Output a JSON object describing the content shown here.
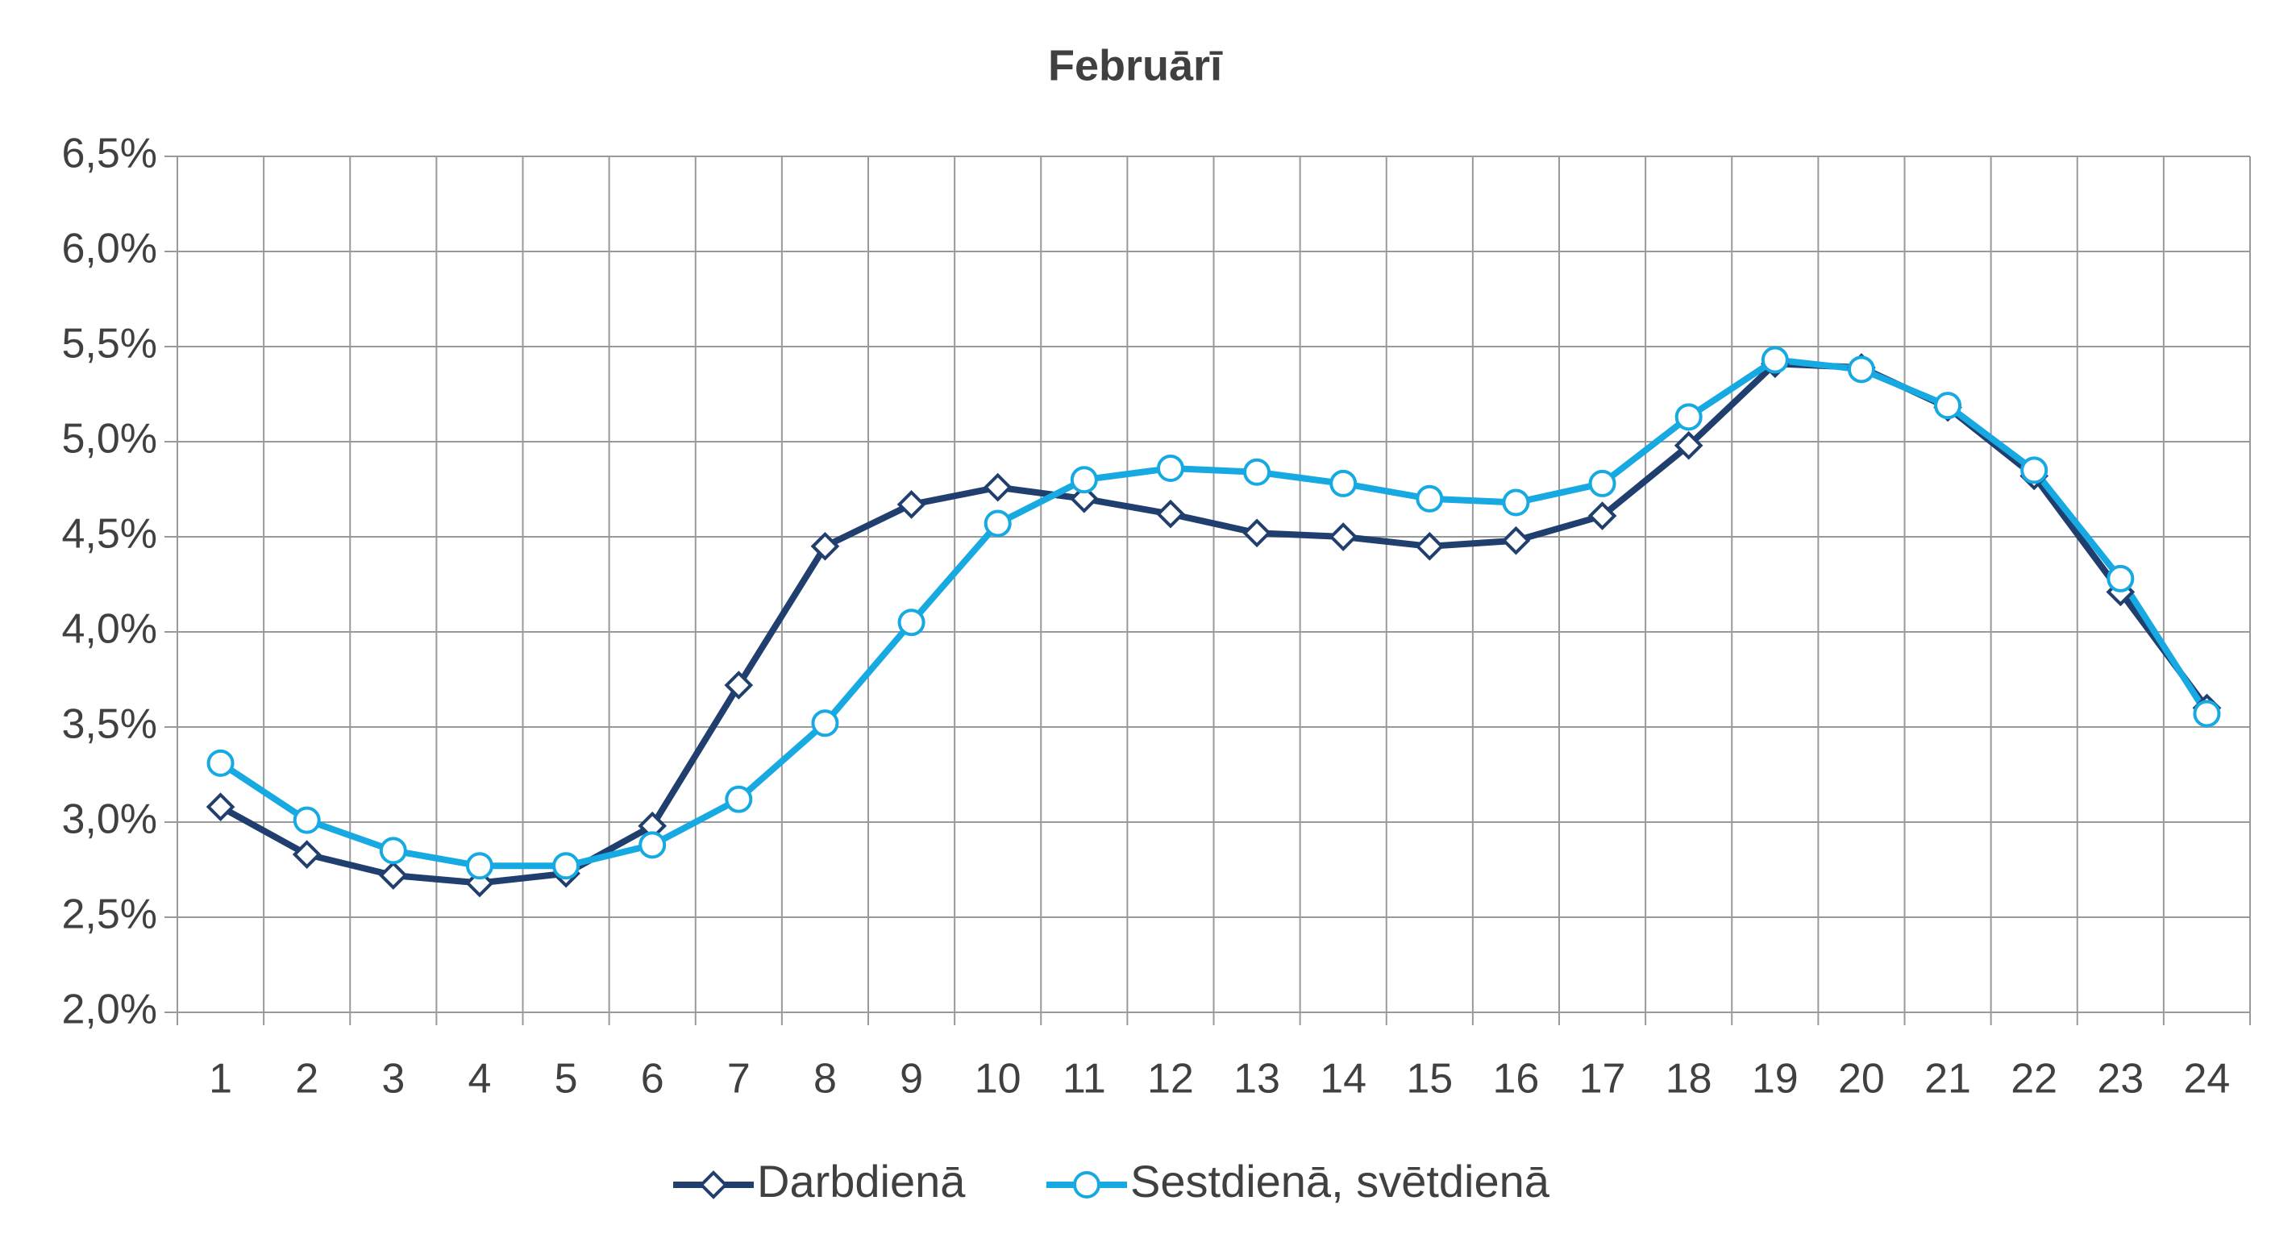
{
  "chart_data": {
    "type": "line",
    "title": "Februārī",
    "categories": [
      "1",
      "2",
      "3",
      "4",
      "5",
      "6",
      "7",
      "8",
      "9",
      "10",
      "11",
      "12",
      "13",
      "14",
      "15",
      "16",
      "17",
      "18",
      "19",
      "20",
      "21",
      "22",
      "23",
      "24"
    ],
    "series": [
      {
        "name": "Darbdienā",
        "color": "#203f6e",
        "marker": "diamond",
        "values": [
          3.08,
          2.83,
          2.72,
          2.68,
          2.73,
          2.98,
          3.72,
          4.45,
          4.67,
          4.76,
          4.7,
          4.62,
          4.52,
          4.5,
          4.45,
          4.48,
          4.61,
          4.98,
          5.41,
          5.39,
          5.18,
          4.82,
          4.21,
          3.6
        ]
      },
      {
        "name": "Sestdienā, svētdienā",
        "color": "#17a9e1",
        "marker": "circle",
        "values": [
          3.31,
          3.01,
          2.85,
          2.77,
          2.77,
          2.88,
          3.12,
          3.52,
          4.05,
          4.57,
          4.8,
          4.86,
          4.84,
          4.78,
          4.7,
          4.68,
          4.78,
          5.13,
          5.43,
          5.38,
          5.19,
          4.85,
          4.28,
          3.57
        ]
      }
    ],
    "ylim": [
      2.0,
      6.5
    ],
    "yticks": [
      {
        "value": 2.0,
        "label": "2,0%"
      },
      {
        "value": 2.5,
        "label": "2,5%"
      },
      {
        "value": 3.0,
        "label": "3,0%"
      },
      {
        "value": 3.5,
        "label": "3,5%"
      },
      {
        "value": 4.0,
        "label": "4,0%"
      },
      {
        "value": 4.5,
        "label": "4,5%"
      },
      {
        "value": 5.0,
        "label": "5,0%"
      },
      {
        "value": 5.5,
        "label": "5,5%"
      },
      {
        "value": 6.0,
        "label": "6,0%"
      },
      {
        "value": 6.5,
        "label": "6,5%"
      }
    ],
    "grid": true,
    "legend": "bottom"
  }
}
